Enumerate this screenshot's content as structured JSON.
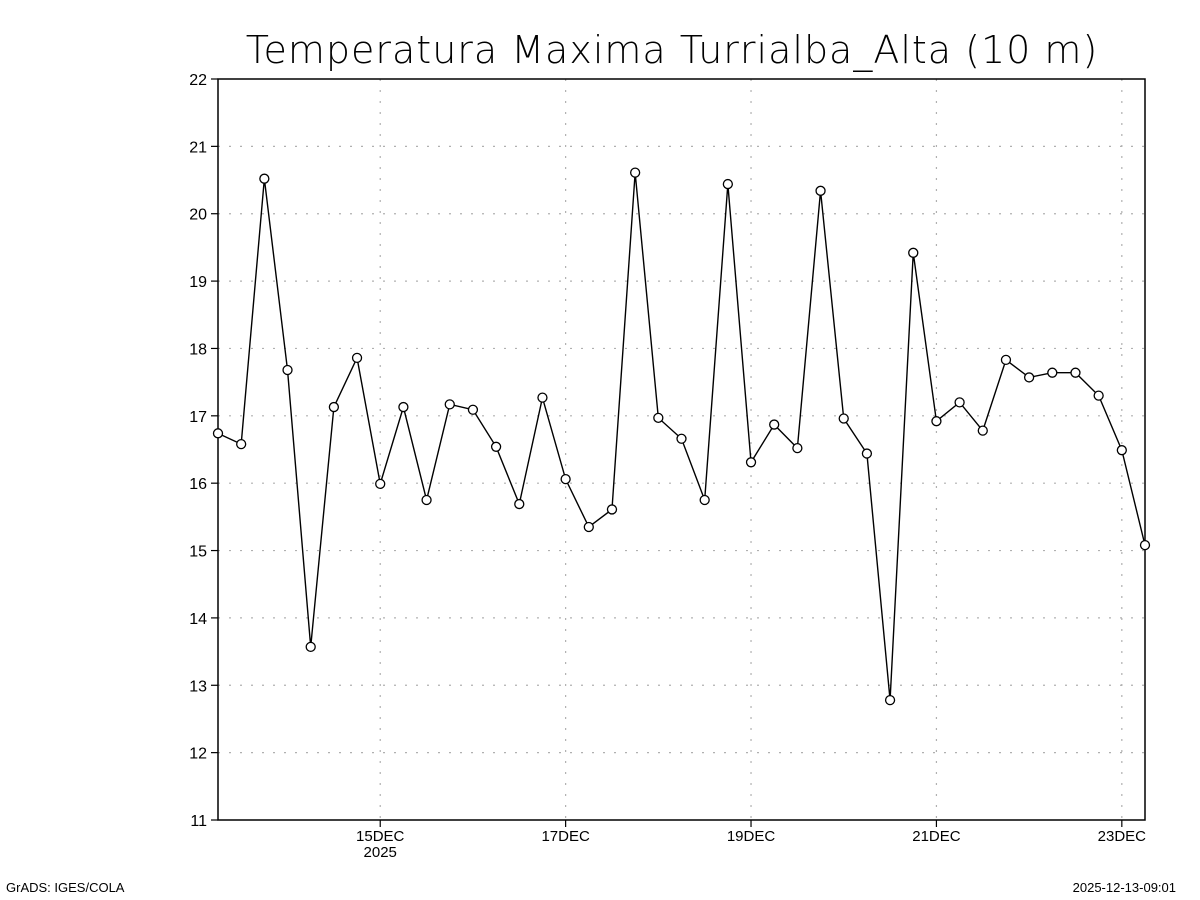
{
  "chart_data": {
    "type": "line",
    "title": "Temperatura Maxima Turrialba_Alta (10 m)",
    "xlabel": "",
    "ylabel": "",
    "ylim": [
      11,
      22
    ],
    "yticks": [
      "11",
      "12",
      "13",
      "14",
      "15",
      "16",
      "17",
      "18",
      "19",
      "20",
      "21",
      "22"
    ],
    "xrange_hours": [
      0,
      240
    ],
    "time_step_hours": 6,
    "x_start": "13DEC2025 06Z",
    "xticks": [
      {
        "label": "15DEC",
        "sublabel": "2025",
        "hour": 42
      },
      {
        "label": "17DEC",
        "sublabel": "",
        "hour": 90
      },
      {
        "label": "19DEC",
        "sublabel": "",
        "hour": 138
      },
      {
        "label": "21DEC",
        "sublabel": "",
        "hour": 186
      },
      {
        "label": "23DEC",
        "sublabel": "",
        "hour": 234
      }
    ],
    "grid": true,
    "marker": "open-circle",
    "series": [
      {
        "name": "Temperatura Maxima",
        "color": "#000000",
        "values": [
          16.74,
          16.58,
          20.52,
          17.68,
          13.57,
          17.13,
          17.86,
          15.99,
          17.13,
          15.75,
          17.17,
          17.09,
          16.54,
          15.69,
          17.27,
          16.06,
          15.35,
          15.61,
          20.61,
          16.97,
          16.66,
          15.75,
          20.44,
          16.31,
          16.87,
          16.52,
          20.34,
          16.96,
          16.44,
          12.78,
          19.42,
          16.92,
          17.2,
          16.78,
          17.83,
          17.57,
          17.64,
          17.64,
          17.3,
          16.49,
          15.08
        ]
      }
    ]
  },
  "footer": {
    "left": "GrADS: IGES/COLA",
    "right": "2025-12-13-09:01"
  }
}
